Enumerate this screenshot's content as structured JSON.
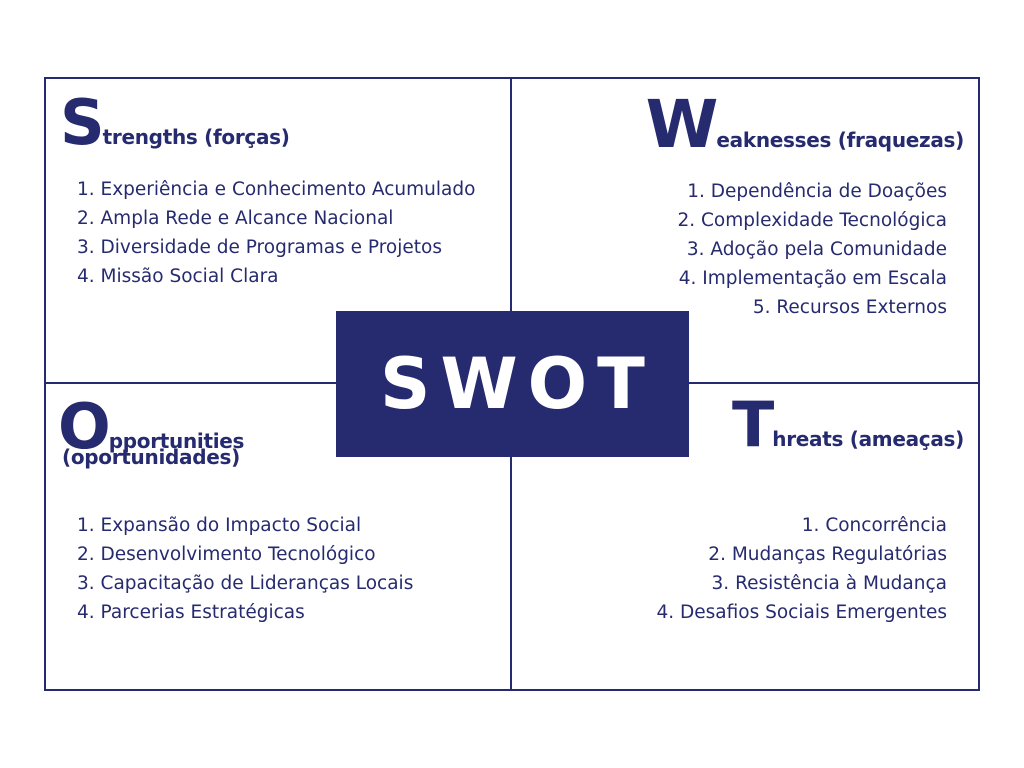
{
  "colors": {
    "primary": "#262a6e",
    "background": "#ffffff",
    "center_text": "#ffffff"
  },
  "center_label": "SWOT",
  "strengths": {
    "big_letter": "S",
    "heading_rest": "trengths (forças)",
    "items": [
      "1. Experiência e Conhecimento Acumulado",
      "2. Ampla Rede e Alcance Nacional",
      "3. Diversidade de Programas e Projetos",
      "4. Missão Social Clara"
    ]
  },
  "weaknesses": {
    "big_letter": "W",
    "heading_rest": "eaknesses (fraquezas)",
    "items": [
      "1. Dependência de Doações",
      "2. Complexidade Tecnológica",
      "3. Adoção pela Comunidade",
      "4. Implementação em Escala",
      "5. Recursos Externos"
    ]
  },
  "opportunities": {
    "big_letter": "O",
    "heading_rest": "pportunities",
    "heading_line2": "(oportunidades)",
    "items": [
      "1. Expansão do Impacto Social",
      "2. Desenvolvimento Tecnológico",
      "3. Capacitação de Lideranças Locais",
      "4. Parcerias Estratégicas"
    ]
  },
  "threats": {
    "big_letter": "T",
    "heading_rest": "hreats (ameaças)",
    "items": [
      "1. Concorrência",
      "2. Mudanças Regulatórias",
      "3. Resistência à Mudança",
      "4. Desafios Sociais Emergentes"
    ]
  }
}
